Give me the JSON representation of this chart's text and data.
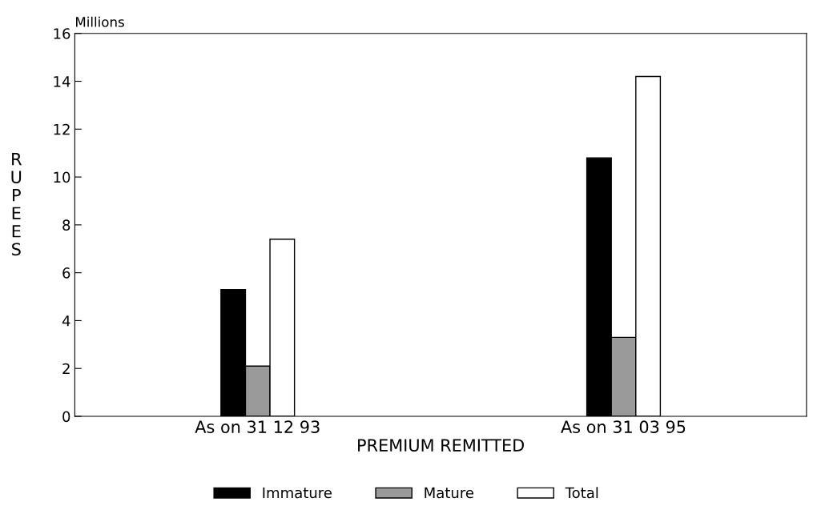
{
  "chart_data": {
    "type": "bar",
    "xlabel": "PREMIUM REMITTED",
    "ylabel": "RUPEES",
    "annotations": [
      "Millions"
    ],
    "categories": [
      "As on 31 12 93",
      "As on 31 03 95"
    ],
    "series": [
      {
        "name": "Immature",
        "color": "#000000",
        "values": [
          5.3,
          10.8
        ]
      },
      {
        "name": "Mature",
        "color": "#9a9a9a",
        "values": [
          2.1,
          3.3
        ]
      },
      {
        "name": "Total",
        "color": "#ffffff",
        "values": [
          7.4,
          14.2
        ]
      }
    ],
    "ylim": [
      0,
      16
    ],
    "yticks": [
      0,
      2,
      4,
      6,
      8,
      10,
      12,
      14,
      16
    ],
    "grid": false,
    "legend": "bottom"
  }
}
